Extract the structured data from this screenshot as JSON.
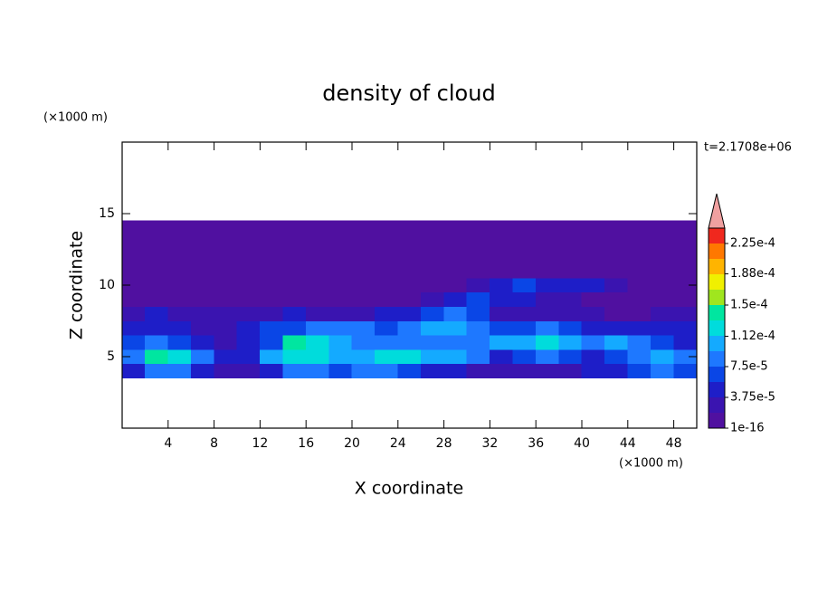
{
  "chart_data": {
    "type": "contour",
    "title": "density of cloud",
    "x_label": "X coordinate",
    "y_label": "Z coordinate",
    "x_unit": "(×1000 m)",
    "y_unit": "(×1000 m)",
    "annotation": "t=2.1708e+06",
    "xlim": [
      0,
      50
    ],
    "ylim": [
      0,
      20
    ],
    "xticks": [
      4,
      8,
      12,
      16,
      20,
      24,
      28,
      32,
      36,
      40,
      44,
      48
    ],
    "yticks": [
      5,
      10,
      15
    ],
    "x": [
      1,
      3,
      5,
      7,
      9,
      11,
      13,
      15,
      17,
      19,
      21,
      23,
      25,
      27,
      29,
      31,
      33,
      35,
      37,
      39,
      41,
      43,
      45,
      47,
      49
    ],
    "z": [
      4,
      5,
      6,
      7,
      8,
      9,
      10,
      11,
      12,
      13,
      14
    ],
    "values": [
      [
        4e-05,
        8e-05,
        8e-05,
        4e-05,
        2e-05,
        2e-05,
        4e-05,
        8e-05,
        8e-05,
        6e-05,
        8e-05,
        8e-05,
        6e-05,
        4e-05,
        4e-05,
        2e-05,
        2e-05,
        2e-05,
        2e-05,
        2e-05,
        4e-05,
        4e-05,
        6e-05,
        8e-05,
        6e-05
      ],
      [
        8e-05,
        0.00014,
        0.00012,
        8e-05,
        4e-05,
        4e-05,
        0.0001,
        0.00012,
        0.00012,
        0.0001,
        0.0001,
        0.00012,
        0.00012,
        0.0001,
        0.0001,
        8e-05,
        4e-05,
        6e-05,
        8e-05,
        6e-05,
        4e-05,
        6e-05,
        8e-05,
        0.0001,
        8e-05
      ],
      [
        6e-05,
        8e-05,
        6e-05,
        4e-05,
        2e-05,
        4e-05,
        6e-05,
        0.00014,
        0.00012,
        0.0001,
        8e-05,
        8e-05,
        8e-05,
        8e-05,
        8e-05,
        8e-05,
        0.0001,
        0.0001,
        0.00012,
        0.0001,
        8e-05,
        0.0001,
        8e-05,
        6e-05,
        4e-05
      ],
      [
        4e-05,
        4e-05,
        4e-05,
        2e-05,
        2e-05,
        4e-05,
        6e-05,
        6e-05,
        8e-05,
        8e-05,
        8e-05,
        6e-05,
        8e-05,
        0.0001,
        0.0001,
        8e-05,
        6e-05,
        6e-05,
        8e-05,
        6e-05,
        4e-05,
        4e-05,
        4e-05,
        4e-05,
        4e-05
      ],
      [
        2e-05,
        4e-05,
        2e-05,
        2e-05,
        2e-05,
        2e-05,
        2e-05,
        4e-05,
        2e-05,
        2e-05,
        2e-05,
        4e-05,
        4e-05,
        6e-05,
        8e-05,
        6e-05,
        2e-05,
        2e-05,
        2e-05,
        2e-05,
        2e-05,
        1e-16,
        1e-16,
        2e-05,
        2e-05
      ],
      [
        1e-16,
        1e-16,
        1e-16,
        1e-16,
        1e-16,
        1e-16,
        1e-16,
        1e-16,
        1e-16,
        1e-16,
        1e-16,
        1e-16,
        1e-16,
        2e-05,
        4e-05,
        6e-05,
        4e-05,
        4e-05,
        2e-05,
        2e-05,
        1e-16,
        1e-16,
        1e-16,
        1e-16,
        1e-16
      ],
      [
        1e-16,
        1e-16,
        1e-16,
        1e-16,
        1e-16,
        1e-16,
        1e-16,
        1e-16,
        1e-16,
        1e-16,
        1e-16,
        1e-16,
        1e-16,
        1e-16,
        1e-16,
        2e-05,
        4e-05,
        6e-05,
        4e-05,
        4e-05,
        4e-05,
        2e-05,
        1e-16,
        1e-16,
        1e-16
      ],
      [
        1e-16,
        1e-16,
        1e-16,
        1e-16,
        1e-16,
        1e-16,
        1e-16,
        1e-16,
        1e-16,
        1e-16,
        1e-16,
        1e-16,
        1e-16,
        1e-16,
        1e-16,
        1e-16,
        1e-16,
        1e-16,
        1e-16,
        1e-16,
        1e-16,
        1e-16,
        1e-16,
        1e-16,
        1e-16
      ],
      [
        1e-16,
        1e-16,
        1e-16,
        1e-16,
        1e-16,
        1e-16,
        1e-16,
        1e-16,
        1e-16,
        1e-16,
        1e-16,
        1e-16,
        1e-16,
        1e-16,
        1e-16,
        1e-16,
        1e-16,
        1e-16,
        1e-16,
        1e-16,
        1e-16,
        1e-16,
        1e-16,
        1e-16,
        1e-16
      ],
      [
        1e-16,
        1e-16,
        1e-16,
        1e-16,
        1e-16,
        1e-16,
        1e-16,
        1e-16,
        1e-16,
        1e-16,
        1e-16,
        1e-16,
        1e-16,
        1e-16,
        1e-16,
        1e-16,
        1e-16,
        1e-16,
        1e-16,
        1e-16,
        1e-16,
        1e-16,
        1e-16,
        1e-16,
        1e-16
      ],
      [
        1e-16,
        1e-16,
        1e-16,
        1e-16,
        1e-16,
        1e-16,
        1e-16,
        1e-16,
        1e-16,
        1e-16,
        1e-16,
        1e-16,
        1e-16,
        1e-16,
        1e-16,
        1e-16,
        1e-16,
        1e-16,
        1e-16,
        1e-16,
        1e-16,
        1e-16,
        1e-16,
        1e-16,
        1e-16
      ]
    ],
    "colorbar_ticks": [
      {
        "value": 1e-16,
        "label": "1e-16"
      },
      {
        "value": 3.75e-05,
        "label": "3.75e-5"
      },
      {
        "value": 7.5e-05,
        "label": "7.5e-5"
      },
      {
        "value": 0.000112,
        "label": "1.12e-4"
      },
      {
        "value": 0.00015,
        "label": "1.5e-4"
      },
      {
        "value": 0.000188,
        "label": "1.88e-4"
      },
      {
        "value": 0.000225,
        "label": "2.25e-4"
      }
    ],
    "colors": [
      "#5010a0",
      "#3a14b0",
      "#1e1ec8",
      "#0a46e6",
      "#1e78ff",
      "#14aaff",
      "#00dcdc",
      "#00e6a0",
      "#a0e61e",
      "#f0f000",
      "#ffb400",
      "#ff7800",
      "#f0281e"
    ],
    "extend_color": "#f0a0a0"
  }
}
